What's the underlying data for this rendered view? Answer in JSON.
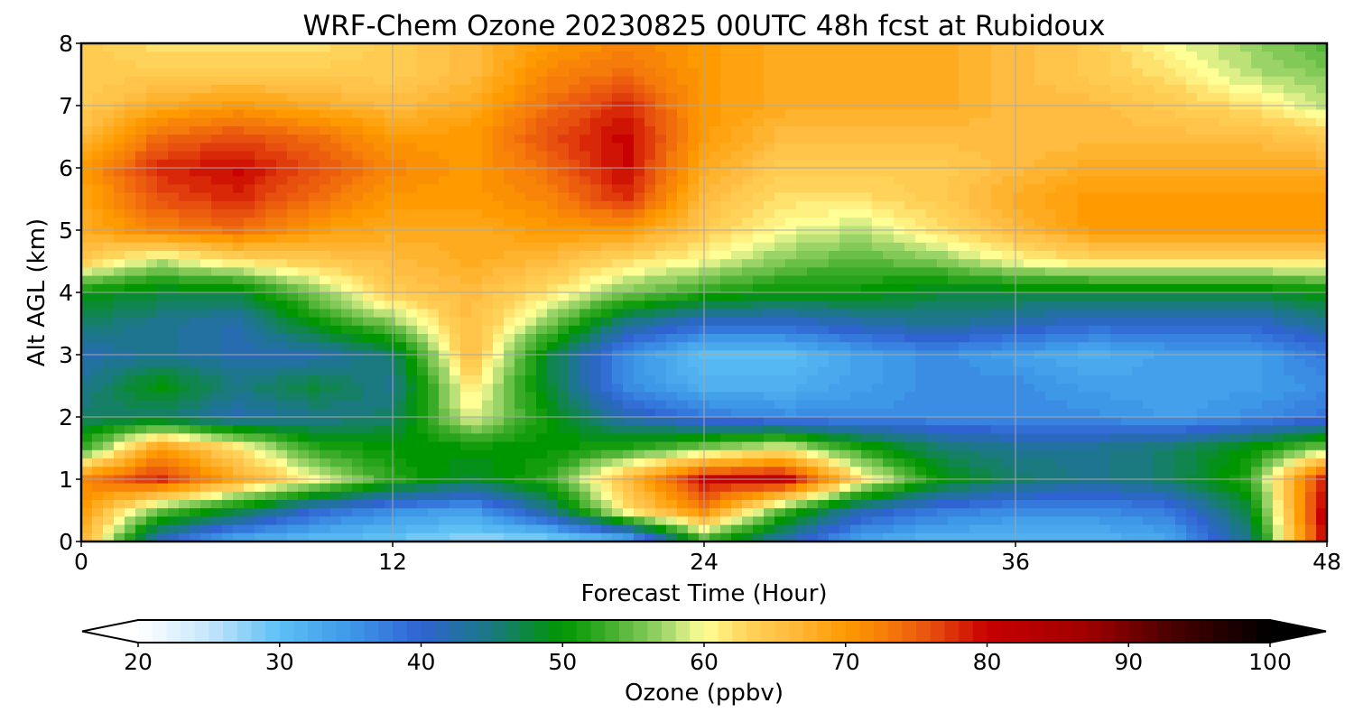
{
  "chart_data": {
    "type": "heatmap",
    "title": "WRF-Chem Ozone  20230825 00UTC 48h fcst at Rubidoux",
    "xlabel": "Forecast Time (Hour)",
    "ylabel": "Alt AGL (km)",
    "xlim": [
      0,
      48
    ],
    "ylim": [
      0,
      8
    ],
    "xticks": [
      "0",
      "12",
      "24",
      "36",
      "48"
    ],
    "yticks": [
      "0",
      "1",
      "2",
      "3",
      "4",
      "5",
      "6",
      "7",
      "8"
    ],
    "grid": true,
    "x_hours": [
      0,
      3,
      6,
      9,
      12,
      15,
      18,
      21,
      24,
      27,
      30,
      33,
      36,
      39,
      42,
      45,
      48
    ],
    "y_km": [
      0,
      0.5,
      1,
      1.5,
      2,
      2.5,
      3,
      3.5,
      4,
      4.5,
      5,
      5.5,
      6,
      6.5,
      7,
      7.5,
      8
    ],
    "values_ppbv": [
      [
        68,
        40,
        32,
        30,
        29,
        27,
        27,
        30,
        52,
        42,
        33,
        31,
        31,
        31,
        33,
        44,
        82
      ],
      [
        70,
        55,
        48,
        40,
        36,
        34,
        44,
        62,
        72,
        54,
        42,
        38,
        36,
        36,
        38,
        48,
        82
      ],
      [
        72,
        78,
        68,
        60,
        52,
        48,
        52,
        66,
        80,
        82,
        62,
        50,
        46,
        44,
        46,
        52,
        80
      ],
      [
        52,
        70,
        62,
        52,
        50,
        50,
        50,
        52,
        56,
        60,
        52,
        46,
        44,
        44,
        46,
        50,
        56
      ],
      [
        46,
        46,
        42,
        44,
        46,
        60,
        50,
        42,
        38,
        36,
        36,
        36,
        36,
        36,
        34,
        36,
        38
      ],
      [
        44,
        50,
        45,
        48,
        44,
        62,
        48,
        36,
        32,
        32,
        34,
        36,
        36,
        34,
        34,
        34,
        36
      ],
      [
        42,
        44,
        42,
        42,
        46,
        66,
        48,
        36,
        30,
        30,
        34,
        36,
        34,
        32,
        34,
        34,
        38
      ],
      [
        46,
        44,
        42,
        50,
        56,
        66,
        56,
        44,
        40,
        40,
        42,
        44,
        42,
        40,
        40,
        40,
        44
      ],
      [
        50,
        48,
        48,
        56,
        64,
        66,
        62,
        56,
        52,
        50,
        50,
        48,
        48,
        48,
        48,
        48,
        50
      ],
      [
        64,
        58,
        62,
        64,
        66,
        68,
        66,
        62,
        60,
        56,
        54,
        56,
        60,
        62,
        62,
        62,
        62
      ],
      [
        68,
        72,
        74,
        70,
        68,
        68,
        70,
        70,
        64,
        60,
        58,
        62,
        66,
        70,
        70,
        70,
        70
      ],
      [
        68,
        76,
        78,
        74,
        70,
        70,
        72,
        78,
        66,
        62,
        62,
        64,
        68,
        70,
        70,
        70,
        70
      ],
      [
        70,
        78,
        80,
        76,
        72,
        70,
        74,
        80,
        68,
        64,
        64,
        64,
        66,
        68,
        68,
        68,
        68
      ],
      [
        66,
        74,
        76,
        74,
        70,
        70,
        76,
        80,
        70,
        66,
        66,
        66,
        66,
        66,
        66,
        66,
        64
      ],
      [
        64,
        68,
        70,
        68,
        66,
        68,
        74,
        78,
        70,
        68,
        68,
        68,
        66,
        66,
        64,
        62,
        58
      ],
      [
        64,
        64,
        64,
        64,
        64,
        66,
        72,
        74,
        70,
        68,
        68,
        68,
        66,
        64,
        62,
        58,
        56
      ],
      [
        64,
        62,
        62,
        62,
        64,
        66,
        70,
        72,
        70,
        68,
        68,
        68,
        66,
        64,
        60,
        57,
        54
      ]
    ],
    "colorbar": {
      "label": "Ozone  (ppbv)",
      "min": 20,
      "max": 100,
      "extend": "both",
      "ticks": [
        "20",
        "30",
        "40",
        "50",
        "60",
        "70",
        "80",
        "90",
        "100"
      ],
      "stops": [
        [
          20,
          "#ffffff"
        ],
        [
          25,
          "#c6e6fa"
        ],
        [
          30,
          "#5cc0f5"
        ],
        [
          35,
          "#3e98e8"
        ],
        [
          40,
          "#2f63d2"
        ],
        [
          45,
          "#1a7a80"
        ],
        [
          50,
          "#009600"
        ],
        [
          53,
          "#3aab28"
        ],
        [
          57,
          "#9ad368"
        ],
        [
          60,
          "#ffff96"
        ],
        [
          63,
          "#ffd35a"
        ],
        [
          66,
          "#ffbc40"
        ],
        [
          70,
          "#ff9a00"
        ],
        [
          73,
          "#f57b0a"
        ],
        [
          76,
          "#e85010"
        ],
        [
          80,
          "#c80000"
        ],
        [
          87,
          "#a00000"
        ],
        [
          93,
          "#4a0000"
        ],
        [
          100,
          "#000000"
        ]
      ]
    }
  }
}
